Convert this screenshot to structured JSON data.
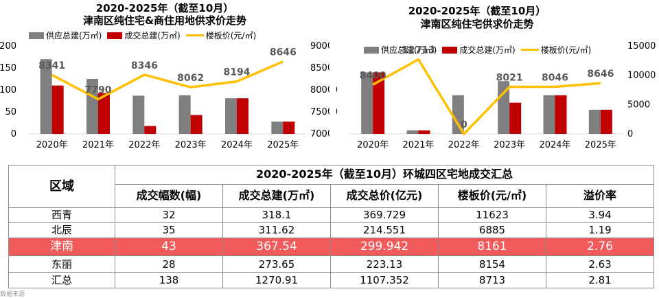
{
  "colors": {
    "supply": "#7f7f7f",
    "deal": "#c00000",
    "price": "#ffc000",
    "highlight_row": "#f25b5b"
  },
  "chart_data": [
    {
      "type": "bar",
      "title_line1": "2020-2025年（截至10月）",
      "title_line2": "津南区纯住宅&商住用地供求价走势",
      "categories": [
        "2020年",
        "2021年",
        "2022年",
        "2023年",
        "2024年",
        "2025年"
      ],
      "series": [
        {
          "name": "供应总建(万㎡)",
          "type": "bar",
          "axis": "left",
          "values": [
            170,
            125,
            87,
            88,
            81,
            28
          ]
        },
        {
          "name": "成交总建(万㎡)",
          "type": "bar",
          "axis": "left",
          "values": [
            110,
            93,
            18,
            43,
            81,
            28
          ]
        },
        {
          "name": "楼板价(元/㎡)",
          "type": "line",
          "axis": "right",
          "values": [
            8341,
            7790,
            8346,
            8062,
            8194,
            8646
          ]
        }
      ],
      "price_labels": [
        "8341",
        "7790",
        "8346",
        "8062",
        "8194",
        "8646"
      ],
      "y_left": {
        "min": 0,
        "max": 200,
        "ticks": [
          "0",
          "50",
          "100",
          "150",
          "200"
        ]
      },
      "y_right": {
        "min": 7000,
        "max": 9000,
        "ticks": [
          "7000",
          "7500",
          "8000",
          "8500",
          "9000"
        ]
      }
    },
    {
      "type": "bar",
      "title_line1": "2020-2025年（截至10月）",
      "title_line2": "津南区纯住宅供求价走势",
      "categories": [
        "2020年",
        "2021年",
        "2022年",
        "2023年",
        "2024年",
        "2025年"
      ],
      "series": [
        {
          "name": "供应总建(万㎡)",
          "type": "bar",
          "axis": "left",
          "values": [
            140,
            8,
            88,
            120,
            88,
            55
          ]
        },
        {
          "name": "成交总建(万㎡)",
          "type": "bar",
          "axis": "left",
          "values": [
            140,
            8,
            0,
            71,
            88,
            55
          ]
        },
        {
          "name": "楼板价(元/㎡)",
          "type": "line",
          "axis": "right",
          "values": [
            8400,
            12713,
            0,
            8021,
            8046,
            8646
          ]
        }
      ],
      "price_labels": [
        "8400",
        "12713",
        "0",
        "8021",
        "8046",
        "8646"
      ],
      "y_left": {
        "min": 0,
        "max": 200,
        "ticks": [
          "50",
          "100"
        ]
      },
      "y_right": {
        "min": 0,
        "max": 15000,
        "ticks": [
          "0",
          "5000",
          "10000",
          "15000"
        ]
      }
    }
  ],
  "summary_table": {
    "title": "2020-2025年（截至10月）环城四区宅地成交汇总",
    "region_header": "区域",
    "columns": [
      "成交幅数(幅)",
      "成交总建(万㎡)",
      "成交总价(亿元)",
      "楼板价(元/㎡)",
      "溢价率"
    ],
    "rows": [
      {
        "region": "西青",
        "count": "32",
        "area": "318.1",
        "total": "369.729",
        "price": "11623",
        "premium": "3.94"
      },
      {
        "region": "北辰",
        "count": "35",
        "area": "311.62",
        "total": "214.551",
        "price": "6885",
        "premium": "1.19"
      },
      {
        "region": "津南",
        "count": "43",
        "area": "367.54",
        "total": "299.942",
        "price": "8161",
        "premium": "2.76"
      },
      {
        "region": "东丽",
        "count": "28",
        "area": "273.65",
        "total": "223.13",
        "price": "8154",
        "premium": "2.63"
      },
      {
        "region": "汇总",
        "count": "138",
        "area": "1270.91",
        "total": "1107.352",
        "price": "8713",
        "premium": "2.81"
      }
    ],
    "highlight_region": "津南"
  },
  "footnote": "数据来源"
}
